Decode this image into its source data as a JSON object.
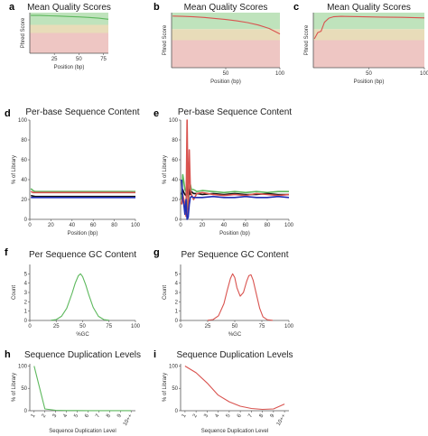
{
  "colors": {
    "good_band": "#bfe3bc",
    "warn_band": "#e8dcb9",
    "bad_band": "#eec6c3",
    "green": "#5cb85c",
    "red": "#d9534f",
    "blue": "#1f2fb5",
    "black": "#111111"
  },
  "chart_data": [
    {
      "letter": "a",
      "type": "line",
      "title": "Mean Quality Scores",
      "xlabel": "Position (bp)",
      "ylabel": "Phred Score",
      "xlim": [
        0,
        80
      ],
      "ylim": [
        0,
        40
      ],
      "xticks": [
        25,
        50,
        75
      ],
      "xtick_labels": [
        "25",
        "50",
        "75"
      ],
      "bands": [
        {
          "from": 28,
          "to": 40,
          "color": "good"
        },
        {
          "from": 20,
          "to": 28,
          "color": "warn"
        },
        {
          "from": 0,
          "to": 20,
          "color": "bad"
        }
      ],
      "series": [
        {
          "color": "green",
          "x": [
            1,
            10,
            20,
            30,
            40,
            50,
            60,
            70,
            80
          ],
          "y": [
            37.2,
            37.2,
            36.9,
            36.6,
            36.2,
            35.8,
            35.3,
            34.6,
            33.5
          ]
        }
      ]
    },
    {
      "letter": "b",
      "type": "line",
      "title": "Mean Quality Scores",
      "xlabel": "Position (bp)",
      "ylabel": "Phred Score",
      "xlim": [
        0,
        100
      ],
      "ylim": [
        0,
        40
      ],
      "xticks": [
        50,
        100
      ],
      "xtick_labels": [
        "50",
        "100"
      ],
      "bands": [
        {
          "from": 28,
          "to": 40,
          "color": "good"
        },
        {
          "from": 20,
          "to": 28,
          "color": "warn"
        },
        {
          "from": 0,
          "to": 20,
          "color": "bad"
        }
      ],
      "series": [
        {
          "color": "red",
          "x": [
            1,
            10,
            20,
            30,
            40,
            50,
            60,
            70,
            80,
            90,
            100
          ],
          "y": [
            37.5,
            37.3,
            37.0,
            36.5,
            35.8,
            35.0,
            34.0,
            32.8,
            31.0,
            28.5,
            24.5
          ]
        }
      ]
    },
    {
      "letter": "c",
      "type": "line",
      "title": "Mean Quality Scores",
      "xlabel": "Position (bp)",
      "ylabel": "Phred Score",
      "xlim": [
        0,
        100
      ],
      "ylim": [
        0,
        40
      ],
      "xticks": [
        50,
        100
      ],
      "xtick_labels": [
        "50",
        "100"
      ],
      "bands": [
        {
          "from": 28,
          "to": 40,
          "color": "good"
        },
        {
          "from": 20,
          "to": 28,
          "color": "warn"
        },
        {
          "from": 0,
          "to": 20,
          "color": "bad"
        }
      ],
      "series": [
        {
          "color": "red",
          "x": [
            1,
            4,
            7,
            10,
            14,
            18,
            25,
            40,
            60,
            80,
            100
          ],
          "y": [
            21,
            25.5,
            26.5,
            33,
            36,
            37,
            37.3,
            37.1,
            36.8,
            36.6,
            36.2
          ]
        }
      ]
    },
    {
      "letter": "d",
      "type": "line",
      "title": "Per-base Sequence Content",
      "xlabel": "Position (bp)",
      "ylabel": "% of Library",
      "xlim": [
        0,
        100
      ],
      "ylim": [
        0,
        100
      ],
      "xticks": [
        0,
        20,
        40,
        60,
        80,
        100
      ],
      "xtick_labels": [
        "0",
        "20",
        "40",
        "60",
        "80",
        "100"
      ],
      "yticks": [
        0,
        20,
        40,
        60,
        80,
        100
      ],
      "ytick_labels": [
        "0",
        "20",
        "40",
        "60",
        "80",
        "100"
      ],
      "series": [
        {
          "color": "green",
          "x": [
            1,
            3,
            5,
            10,
            20,
            40,
            60,
            80,
            100
          ],
          "y": [
            31,
            29,
            28,
            28,
            28,
            28,
            28,
            28,
            28
          ]
        },
        {
          "color": "red",
          "x": [
            1,
            3,
            5,
            10,
            20,
            40,
            60,
            80,
            100
          ],
          "y": [
            28,
            27,
            27,
            27,
            27,
            27,
            27,
            27,
            27
          ]
        },
        {
          "color": "black",
          "x": [
            1,
            3,
            5,
            10,
            20,
            40,
            60,
            80,
            100
          ],
          "y": [
            24,
            23.5,
            23,
            23,
            23,
            23,
            23,
            23,
            23
          ]
        },
        {
          "color": "blue",
          "x": [
            1,
            3,
            5,
            10,
            20,
            40,
            60,
            80,
            100
          ],
          "y": [
            22,
            22,
            22,
            22,
            22,
            22,
            22,
            22,
            22
          ]
        }
      ]
    },
    {
      "letter": "e",
      "type": "line",
      "title": "Per-base Sequence Content",
      "xlabel": "Position (bp)",
      "ylabel": "% of Library",
      "xlim": [
        0,
        100
      ],
      "ylim": [
        0,
        100
      ],
      "xticks": [
        0,
        20,
        40,
        60,
        80,
        100
      ],
      "xtick_labels": [
        "0",
        "20",
        "40",
        "60",
        "80",
        "100"
      ],
      "yticks": [
        0,
        20,
        40,
        60,
        80,
        100
      ],
      "ytick_labels": [
        "0",
        "20",
        "40",
        "60",
        "80",
        "100"
      ],
      "series": [
        {
          "color": "green",
          "x": [
            1,
            2,
            3,
            4,
            5,
            6,
            7,
            8,
            9,
            10,
            12,
            15,
            20,
            30,
            40,
            50,
            60,
            70,
            80,
            90,
            100
          ],
          "y": [
            20,
            45,
            38,
            30,
            28,
            10,
            15,
            28,
            35,
            30,
            30,
            28,
            29,
            28,
            27,
            28,
            27,
            28,
            27,
            28,
            28
          ]
        },
        {
          "color": "black",
          "x": [
            1,
            2,
            3,
            4,
            5,
            6,
            7,
            8,
            9,
            10,
            12,
            15,
            20,
            30,
            40,
            50,
            60,
            70,
            80,
            90,
            100
          ],
          "y": [
            25,
            30,
            27,
            25,
            24,
            35,
            20,
            30,
            25,
            28,
            26,
            26,
            25,
            26,
            25,
            26,
            25,
            25,
            26,
            25,
            25
          ]
        },
        {
          "color": "red",
          "x": [
            1,
            2,
            3,
            4,
            5,
            6,
            7,
            8,
            9,
            10,
            12,
            15,
            20,
            30,
            40,
            50,
            60,
            70,
            80,
            90,
            100
          ],
          "y": [
            15,
            25,
            20,
            15,
            3,
            100,
            5,
            70,
            30,
            25,
            20,
            26,
            27,
            25,
            24,
            25,
            24,
            26,
            25,
            24,
            25
          ]
        },
        {
          "color": "blue",
          "x": [
            1,
            2,
            3,
            4,
            5,
            6,
            7,
            8,
            9,
            10,
            12,
            15,
            20,
            30,
            40,
            50,
            60,
            70,
            80,
            90,
            100
          ],
          "y": [
            40,
            20,
            15,
            5,
            20,
            0,
            2,
            15,
            22,
            23,
            22,
            22,
            22,
            23,
            22,
            22,
            23,
            22,
            22,
            23,
            22
          ]
        }
      ]
    },
    {
      "letter": "f",
      "type": "line",
      "title": "Per Sequence GC Content",
      "xlabel": "%GC",
      "ylabel": "Count",
      "xlim": [
        0,
        100
      ],
      "ylim": [
        0,
        6
      ],
      "xticks": [
        0,
        25,
        50,
        75,
        100
      ],
      "xtick_labels": [
        "0",
        "25",
        "50",
        "75",
        "100"
      ],
      "yticks": [
        0,
        1,
        2,
        3,
        4,
        5
      ],
      "ytick_labels": [
        "0",
        "1",
        "2",
        "3",
        "4",
        "5"
      ],
      "series": [
        {
          "color": "green",
          "x": [
            20,
            25,
            30,
            35,
            40,
            43,
            46,
            48,
            50,
            53,
            56,
            60,
            65,
            70,
            75
          ],
          "y": [
            0.02,
            0.1,
            0.45,
            1.3,
            2.9,
            4.0,
            4.8,
            5.0,
            4.7,
            3.8,
            2.7,
            1.4,
            0.45,
            0.1,
            0.02
          ]
        }
      ]
    },
    {
      "letter": "g",
      "type": "line",
      "title": "Per Sequence GC Content",
      "xlabel": "%GC",
      "ylabel": "Count",
      "xlim": [
        0,
        100
      ],
      "ylim": [
        0,
        6
      ],
      "xticks": [
        0,
        25,
        50,
        75,
        100
      ],
      "xtick_labels": [
        "0",
        "25",
        "50",
        "75",
        "100"
      ],
      "yticks": [
        0,
        1,
        2,
        3,
        4,
        5
      ],
      "ytick_labels": [
        "0",
        "1",
        "2",
        "3",
        "4",
        "5"
      ],
      "series": [
        {
          "color": "red",
          "x": [
            25,
            30,
            35,
            40,
            43,
            46,
            48,
            50,
            52,
            55,
            58,
            61,
            63,
            65,
            67,
            70,
            73,
            76,
            80,
            85
          ],
          "y": [
            0.02,
            0.1,
            0.5,
            1.8,
            3.2,
            4.5,
            5.0,
            4.6,
            3.5,
            2.6,
            3.0,
            4.2,
            4.8,
            4.9,
            4.3,
            2.8,
            1.3,
            0.4,
            0.08,
            0.01
          ]
        }
      ]
    },
    {
      "letter": "h",
      "type": "line",
      "title": "Sequence Duplication Levels",
      "xlabel": "Sequence Duplication Level",
      "ylabel": "% of Library",
      "xlim": [
        0.6,
        10.4
      ],
      "ylim": [
        0,
        105
      ],
      "xticks": [
        1,
        2,
        3,
        4,
        5,
        6,
        7,
        8,
        9,
        10
      ],
      "xtick_labels": [
        "1",
        "2",
        "3",
        "4",
        "5",
        "6",
        "7",
        "8",
        "9",
        "10++"
      ],
      "xtick_rotate": true,
      "yticks": [
        0,
        50,
        100
      ],
      "ytick_labels": [
        "0",
        "50",
        "100"
      ],
      "series": [
        {
          "color": "green",
          "x": [
            1,
            2,
            3,
            4,
            5,
            6,
            7,
            8,
            9,
            10
          ],
          "y": [
            100,
            4,
            1,
            0.5,
            0.4,
            0.3,
            0.3,
            0.3,
            0.3,
            0.3
          ]
        }
      ]
    },
    {
      "letter": "i",
      "type": "line",
      "title": "Sequence Duplication Levels",
      "xlabel": "Sequence Duplication Level",
      "ylabel": "% of Library",
      "xlim": [
        0.6,
        10.4
      ],
      "ylim": [
        0,
        105
      ],
      "xticks": [
        1,
        2,
        3,
        4,
        5,
        6,
        7,
        8,
        9,
        10
      ],
      "xtick_labels": [
        "1",
        "2",
        "3",
        "4",
        "5",
        "6",
        "7",
        "8",
        "9",
        "10++"
      ],
      "xtick_rotate": true,
      "yticks": [
        0,
        50,
        100
      ],
      "ytick_labels": [
        "0",
        "50",
        "100"
      ],
      "series": [
        {
          "color": "red",
          "x": [
            1,
            2,
            3,
            4,
            5,
            6,
            7,
            8,
            9,
            10
          ],
          "y": [
            100,
            85,
            62,
            35,
            20,
            10,
            5,
            3,
            4,
            15
          ]
        }
      ]
    }
  ]
}
